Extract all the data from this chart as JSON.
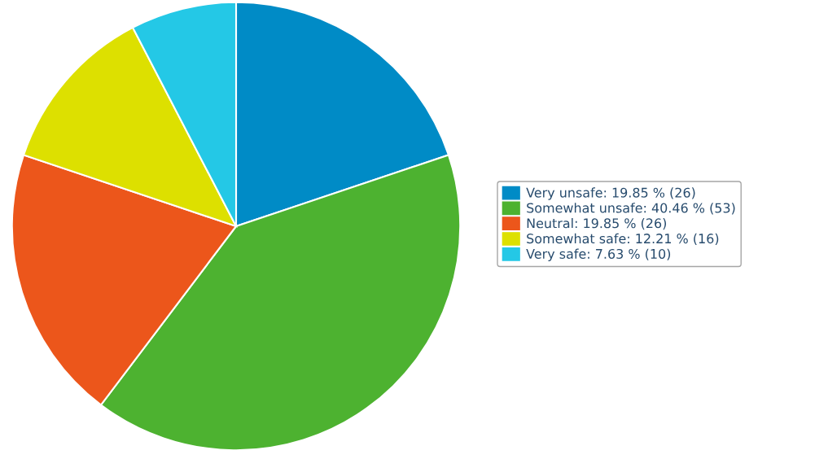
{
  "chart_data": {
    "type": "pie",
    "categories": [
      "Very unsafe: 19.85 % (26)",
      "Somewhat unsafe: 40.46 % (53)",
      "Neutral: 19.85 % (26)",
      "Somewhat safe: 12.21 % (16)",
      "Very safe: 7.63 % (10)"
    ],
    "values": [
      26,
      53,
      26,
      16,
      10
    ],
    "colors": [
      "#008bc6",
      "#4db230",
      "#ec561b",
      "#dde000",
      "#24c8e6"
    ],
    "legend": "right"
  }
}
